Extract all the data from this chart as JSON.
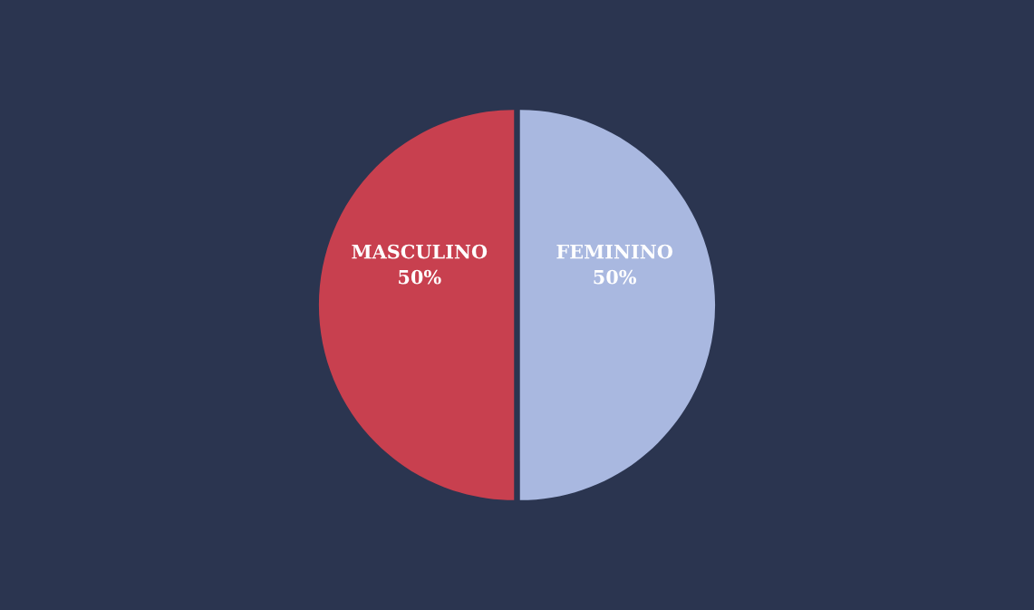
{
  "chart_data": {
    "type": "pie",
    "categories": [
      "MASCULINO",
      "FEMININO"
    ],
    "values": [
      50,
      50
    ],
    "value_labels": [
      "50%",
      "50%"
    ],
    "colors": [
      "#c8404f",
      "#a9b8e0"
    ],
    "legend": false
  }
}
